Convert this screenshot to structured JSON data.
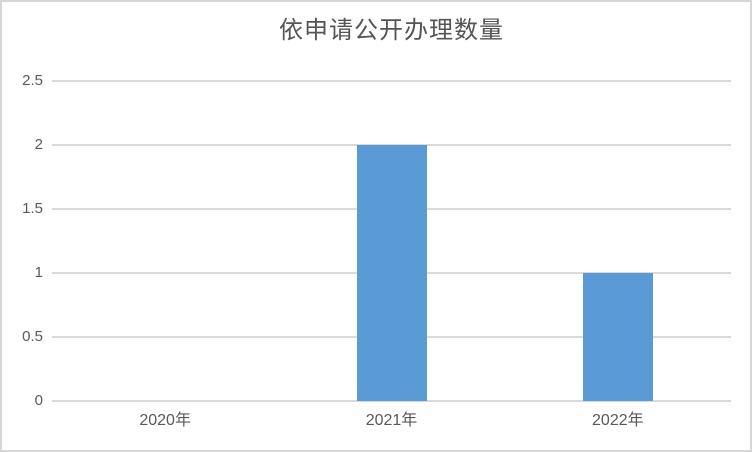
{
  "chart_data": {
    "type": "bar",
    "title": "依申请公开办理数量",
    "categories": [
      "2020年",
      "2021年",
      "2022年"
    ],
    "values": [
      0,
      2,
      1
    ],
    "xlabel": "",
    "ylabel": "",
    "ylim": [
      0,
      2.5
    ],
    "ytick_step": 0.5,
    "ytick_labels": [
      "0",
      "0.5",
      "1",
      "1.5",
      "2",
      "2.5"
    ],
    "grid": "horizontal",
    "legend_position": "none",
    "colors": {
      "bar": "#5b9bd5",
      "gridline": "#d9d9d9",
      "axis_text": "#595959",
      "title_text": "#555555",
      "frame_border": "#d6d6d6",
      "background": "#ffffff"
    }
  }
}
